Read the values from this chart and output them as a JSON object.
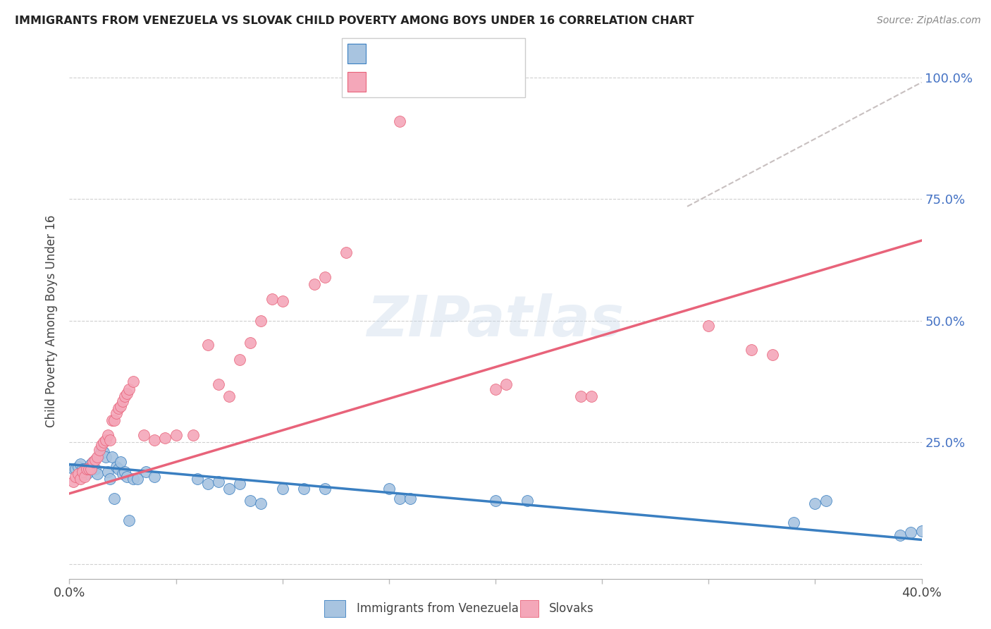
{
  "title": "IMMIGRANTS FROM VENEZUELA VS SLOVAK CHILD POVERTY AMONG BOYS UNDER 16 CORRELATION CHART",
  "source": "Source: ZipAtlas.com",
  "ylabel": "Child Poverty Among Boys Under 16",
  "ytick_vals": [
    0.0,
    0.25,
    0.5,
    0.75,
    1.0
  ],
  "ytick_labels": [
    "",
    "25.0%",
    "50.0%",
    "75.0%",
    "100.0%"
  ],
  "xlim": [
    0.0,
    0.4
  ],
  "ylim": [
    -0.03,
    1.03
  ],
  "watermark": "ZIPatlas",
  "color_blue": "#a8c4e0",
  "color_pink": "#f4a7b9",
  "line_blue": "#3a7fc1",
  "line_pink": "#e8637a",
  "line_dashed_color": "#c8c0c0",
  "blue_scatter": [
    [
      0.002,
      0.195
    ],
    [
      0.003,
      0.195
    ],
    [
      0.004,
      0.2
    ],
    [
      0.005,
      0.205
    ],
    [
      0.006,
      0.195
    ],
    [
      0.007,
      0.195
    ],
    [
      0.008,
      0.185
    ],
    [
      0.009,
      0.195
    ],
    [
      0.01,
      0.205
    ],
    [
      0.011,
      0.21
    ],
    [
      0.012,
      0.195
    ],
    [
      0.013,
      0.185
    ],
    [
      0.014,
      0.225
    ],
    [
      0.015,
      0.235
    ],
    [
      0.016,
      0.23
    ],
    [
      0.017,
      0.22
    ],
    [
      0.018,
      0.19
    ],
    [
      0.019,
      0.175
    ],
    [
      0.02,
      0.22
    ],
    [
      0.021,
      0.135
    ],
    [
      0.022,
      0.2
    ],
    [
      0.023,
      0.195
    ],
    [
      0.024,
      0.21
    ],
    [
      0.025,
      0.185
    ],
    [
      0.026,
      0.19
    ],
    [
      0.027,
      0.18
    ],
    [
      0.028,
      0.09
    ],
    [
      0.03,
      0.175
    ],
    [
      0.032,
      0.175
    ],
    [
      0.036,
      0.19
    ],
    [
      0.04,
      0.18
    ],
    [
      0.06,
      0.175
    ],
    [
      0.065,
      0.165
    ],
    [
      0.07,
      0.17
    ],
    [
      0.075,
      0.155
    ],
    [
      0.08,
      0.165
    ],
    [
      0.085,
      0.13
    ],
    [
      0.09,
      0.125
    ],
    [
      0.1,
      0.155
    ],
    [
      0.11,
      0.155
    ],
    [
      0.12,
      0.155
    ],
    [
      0.15,
      0.155
    ],
    [
      0.155,
      0.135
    ],
    [
      0.16,
      0.135
    ],
    [
      0.2,
      0.13
    ],
    [
      0.215,
      0.13
    ],
    [
      0.34,
      0.085
    ],
    [
      0.35,
      0.125
    ],
    [
      0.355,
      0.13
    ],
    [
      0.39,
      0.06
    ],
    [
      0.395,
      0.065
    ],
    [
      0.4,
      0.068
    ]
  ],
  "pink_scatter": [
    [
      0.002,
      0.17
    ],
    [
      0.003,
      0.18
    ],
    [
      0.004,
      0.185
    ],
    [
      0.005,
      0.175
    ],
    [
      0.006,
      0.19
    ],
    [
      0.007,
      0.18
    ],
    [
      0.008,
      0.195
    ],
    [
      0.009,
      0.195
    ],
    [
      0.01,
      0.195
    ],
    [
      0.011,
      0.21
    ],
    [
      0.012,
      0.215
    ],
    [
      0.013,
      0.22
    ],
    [
      0.014,
      0.235
    ],
    [
      0.015,
      0.245
    ],
    [
      0.016,
      0.25
    ],
    [
      0.017,
      0.255
    ],
    [
      0.018,
      0.265
    ],
    [
      0.019,
      0.255
    ],
    [
      0.02,
      0.295
    ],
    [
      0.021,
      0.295
    ],
    [
      0.022,
      0.31
    ],
    [
      0.023,
      0.32
    ],
    [
      0.024,
      0.325
    ],
    [
      0.025,
      0.335
    ],
    [
      0.026,
      0.345
    ],
    [
      0.027,
      0.35
    ],
    [
      0.028,
      0.36
    ],
    [
      0.03,
      0.375
    ],
    [
      0.035,
      0.265
    ],
    [
      0.04,
      0.255
    ],
    [
      0.045,
      0.26
    ],
    [
      0.05,
      0.265
    ],
    [
      0.058,
      0.265
    ],
    [
      0.065,
      0.45
    ],
    [
      0.07,
      0.37
    ],
    [
      0.075,
      0.345
    ],
    [
      0.08,
      0.42
    ],
    [
      0.085,
      0.455
    ],
    [
      0.09,
      0.5
    ],
    [
      0.095,
      0.545
    ],
    [
      0.1,
      0.54
    ],
    [
      0.115,
      0.575
    ],
    [
      0.12,
      0.59
    ],
    [
      0.13,
      0.64
    ],
    [
      0.155,
      0.91
    ],
    [
      0.2,
      0.36
    ],
    [
      0.205,
      0.37
    ],
    [
      0.24,
      0.345
    ],
    [
      0.245,
      0.345
    ],
    [
      0.3,
      0.49
    ],
    [
      0.32,
      0.44
    ],
    [
      0.33,
      0.43
    ]
  ],
  "blue_line_x": [
    0.0,
    0.4
  ],
  "blue_line_y": [
    0.205,
    0.05
  ],
  "pink_line_x": [
    0.0,
    0.4
  ],
  "pink_line_y": [
    0.145,
    0.665
  ],
  "dashed_line_x": [
    0.29,
    0.4
  ],
  "dashed_line_y": [
    0.735,
    0.99
  ]
}
